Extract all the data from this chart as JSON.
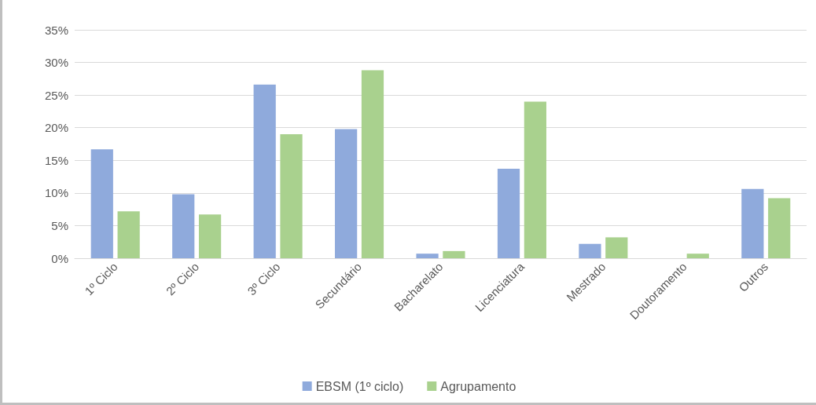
{
  "chart_data": {
    "type": "bar",
    "categories": [
      "1º Ciclo",
      "2º Ciclo",
      "3º Ciclo",
      "Secundário",
      "Bacharelato",
      "Licenciatura",
      "Mestrado",
      "Doutoramento",
      "Outros"
    ],
    "series": [
      {
        "name": "EBSM (1º ciclo)",
        "color": "#8faadc",
        "values": [
          16.7,
          9.8,
          26.6,
          19.8,
          0.7,
          13.7,
          2.2,
          0,
          10.6
        ]
      },
      {
        "name": "Agrupamento",
        "color": "#a9d18e",
        "values": [
          7.2,
          6.7,
          19.0,
          28.8,
          1.1,
          24.0,
          3.2,
          0.7,
          9.2
        ]
      }
    ],
    "ylim": [
      0,
      35
    ],
    "yticks": [
      {
        "value": 0,
        "label": "0%"
      },
      {
        "value": 5,
        "label": "5%"
      },
      {
        "value": 10,
        "label": "10%"
      },
      {
        "value": 15,
        "label": "15%"
      },
      {
        "value": 20,
        "label": "20%"
      },
      {
        "value": 25,
        "label": "25%"
      },
      {
        "value": 30,
        "label": "30%"
      },
      {
        "value": 35,
        "label": "35%"
      }
    ],
    "grid": "y",
    "legend": "bottom"
  }
}
